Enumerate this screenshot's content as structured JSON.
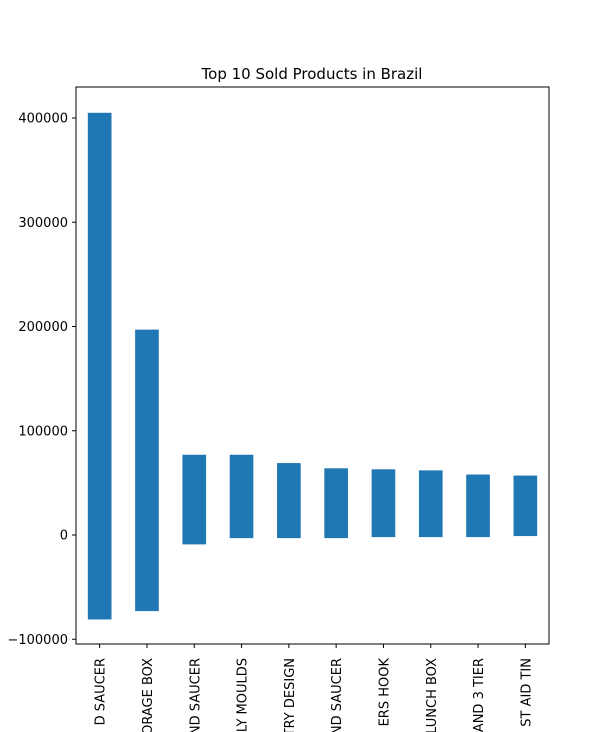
{
  "chart_data": {
    "type": "bar",
    "title": "Top 10 Sold Products in Brazil",
    "xlabel": "",
    "ylabel": "",
    "ylim": [
      -105000,
      430000
    ],
    "yticks": [
      -100000,
      0,
      100000,
      200000,
      300000,
      400000
    ],
    "grid": false,
    "bar_color": "#1f77b4",
    "categories": [
      "D SAUCER",
      "ORAGE BOX",
      "ND SAUCER",
      "LY MOULDS",
      "TRY DESIGN",
      "ND SAUCER",
      "ERS HOOK",
      "LUNCH BOX",
      "AND 3 TIER",
      "ST AID TIN"
    ],
    "series": [
      {
        "base": [
          -81000,
          -73000,
          -9000,
          -3000,
          -3000,
          -3000,
          -2000,
          -2000,
          -2000,
          -1000
        ],
        "top": [
          405000,
          197000,
          77000,
          77000,
          69000,
          64000,
          63000,
          62000,
          58000,
          57000
        ]
      }
    ]
  }
}
